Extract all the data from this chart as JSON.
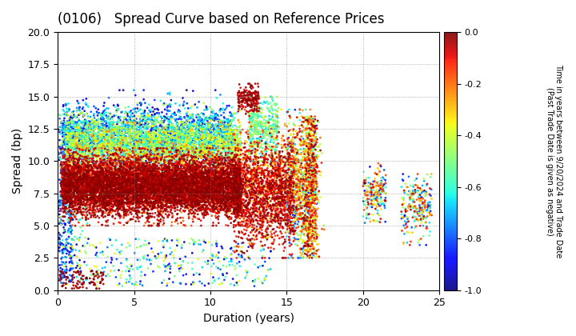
{
  "title": "(0106)   Spread Curve based on Reference Prices",
  "xlabel": "Duration (years)",
  "ylabel": "Spread (bp)",
  "colorbar_label": "Time in years between 9/20/2024 and Trade Date\n(Past Trade Date is given as negative)",
  "xlim": [
    0,
    25
  ],
  "ylim": [
    0.0,
    20.0
  ],
  "yticks": [
    0.0,
    2.5,
    5.0,
    7.5,
    10.0,
    12.5,
    15.0,
    17.5,
    20.0
  ],
  "xticks": [
    0,
    5,
    10,
    15,
    20,
    25
  ],
  "cmap": "jet",
  "vmin": -1.0,
  "vmax": 0.0,
  "colorbar_ticks": [
    0.0,
    -0.2,
    -0.4,
    -0.6,
    -0.8,
    -1.0
  ],
  "background_color": "#ffffff",
  "grid_color": "#888888",
  "marker_size": 4,
  "seed": 42
}
